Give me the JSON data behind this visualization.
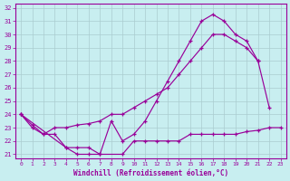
{
  "xlabel": "Windchill (Refroidissement éolien,°C)",
  "x": [
    0,
    1,
    2,
    3,
    4,
    5,
    6,
    7,
    8,
    9,
    10,
    11,
    12,
    13,
    14,
    15,
    16,
    17,
    18,
    19,
    20,
    21,
    22,
    23
  ],
  "line1": [
    24,
    23,
    22.5,
    23,
    23,
    23.2,
    23.3,
    23.5,
    24,
    24,
    24.5,
    25,
    25.5,
    26,
    27,
    28,
    29,
    30,
    30,
    29.5,
    29,
    28,
    null,
    null
  ],
  "line2": [
    24,
    23.2,
    22.5,
    22.5,
    21.5,
    21.5,
    21.5,
    21,
    23.5,
    22,
    22.5,
    23.5,
    25,
    26.5,
    28,
    29.5,
    31,
    31.5,
    31,
    30,
    29.5,
    28,
    24.5,
    null
  ],
  "line3": [
    24,
    null,
    null,
    null,
    21.5,
    21,
    21,
    21,
    null,
    21,
    22,
    22,
    22,
    22,
    22,
    22.5,
    22.5,
    22.5,
    22.5,
    22.5,
    22.7,
    22.8,
    23,
    23
  ],
  "line_color": "#990099",
  "bg_color": "#c8eef0",
  "grid_color": "#aaccd0",
  "ylim": [
    21,
    32
  ],
  "xlim": [
    0,
    23
  ],
  "yticks": [
    21,
    22,
    23,
    24,
    25,
    26,
    27,
    28,
    29,
    30,
    31,
    32
  ],
  "xticks": [
    0,
    1,
    2,
    3,
    4,
    5,
    6,
    7,
    8,
    9,
    10,
    11,
    12,
    13,
    14,
    15,
    16,
    17,
    18,
    19,
    20,
    21,
    22,
    23
  ]
}
